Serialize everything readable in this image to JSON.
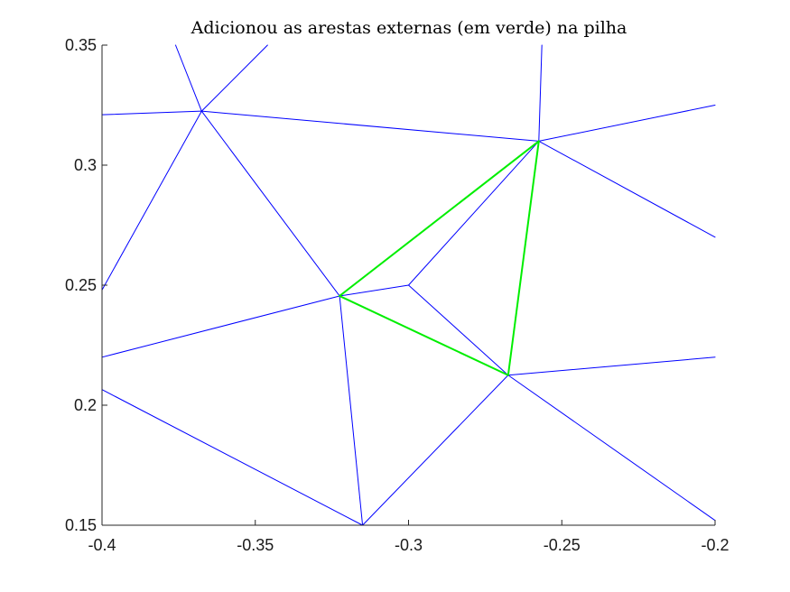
{
  "chart_data": {
    "type": "line",
    "title": "Adicionou as arestas externas (em verde) na pilha",
    "xlabel": "",
    "ylabel": "",
    "xlim": [
      -0.4,
      -0.2
    ],
    "ylim": [
      0.15,
      0.35
    ],
    "x_ticks": [
      -0.4,
      -0.35,
      -0.3,
      -0.25,
      -0.2
    ],
    "x_tick_labels": [
      "-0.4",
      "-0.35",
      "-0.3",
      "-0.25",
      "-0.2"
    ],
    "y_ticks": [
      0.15,
      0.2,
      0.25,
      0.3,
      0.35
    ],
    "y_tick_labels": [
      "0.15",
      "0.2",
      "0.25",
      "0.3",
      "0.35"
    ],
    "grid": false,
    "colors": {
      "edges": "#0000ff",
      "highlight": "#00ee00"
    },
    "series": [
      {
        "color": "#0000ff",
        "segments": [
          [
            [
              -0.3675,
              0.3225
            ],
            [
              -0.4,
              0.321
            ]
          ],
          [
            [
              -0.3675,
              0.3225
            ],
            [
              -0.376,
              0.35
            ]
          ],
          [
            [
              -0.3675,
              0.3225
            ],
            [
              -0.346,
              0.35
            ]
          ],
          [
            [
              -0.3675,
              0.3225
            ],
            [
              -0.2575,
              0.31
            ]
          ],
          [
            [
              -0.3675,
              0.3225
            ],
            [
              -0.4,
              0.248
            ]
          ],
          [
            [
              -0.3675,
              0.3225
            ],
            [
              -0.3225,
              0.2455
            ]
          ],
          [
            [
              -0.2575,
              0.31
            ],
            [
              -0.2565,
              0.35
            ]
          ],
          [
            [
              -0.2575,
              0.31
            ],
            [
              -0.2,
              0.325
            ]
          ],
          [
            [
              -0.2575,
              0.31
            ],
            [
              -0.2,
              0.27
            ]
          ],
          [
            [
              -0.2575,
              0.31
            ],
            [
              -0.3,
              0.25
            ]
          ],
          [
            [
              -0.3225,
              0.2455
            ],
            [
              -0.3,
              0.25
            ]
          ],
          [
            [
              -0.3,
              0.25
            ],
            [
              -0.2675,
              0.2125
            ]
          ],
          [
            [
              -0.3225,
              0.2455
            ],
            [
              -0.4,
              0.22
            ]
          ],
          [
            [
              -0.3225,
              0.2455
            ],
            [
              -0.315,
              0.15
            ]
          ],
          [
            [
              -0.4,
              0.2065
            ],
            [
              -0.315,
              0.15
            ]
          ],
          [
            [
              -0.315,
              0.15
            ],
            [
              -0.2675,
              0.2125
            ]
          ],
          [
            [
              -0.2675,
              0.2125
            ],
            [
              -0.2,
              0.22
            ]
          ],
          [
            [
              -0.2675,
              0.2125
            ],
            [
              -0.2,
              0.152
            ]
          ]
        ]
      },
      {
        "color": "#00ee00",
        "segments": [
          [
            [
              -0.3225,
              0.2455
            ],
            [
              -0.2575,
              0.31
            ]
          ],
          [
            [
              -0.2575,
              0.31
            ],
            [
              -0.2675,
              0.2125
            ]
          ],
          [
            [
              -0.2675,
              0.2125
            ],
            [
              -0.3225,
              0.2455
            ]
          ]
        ]
      }
    ]
  }
}
